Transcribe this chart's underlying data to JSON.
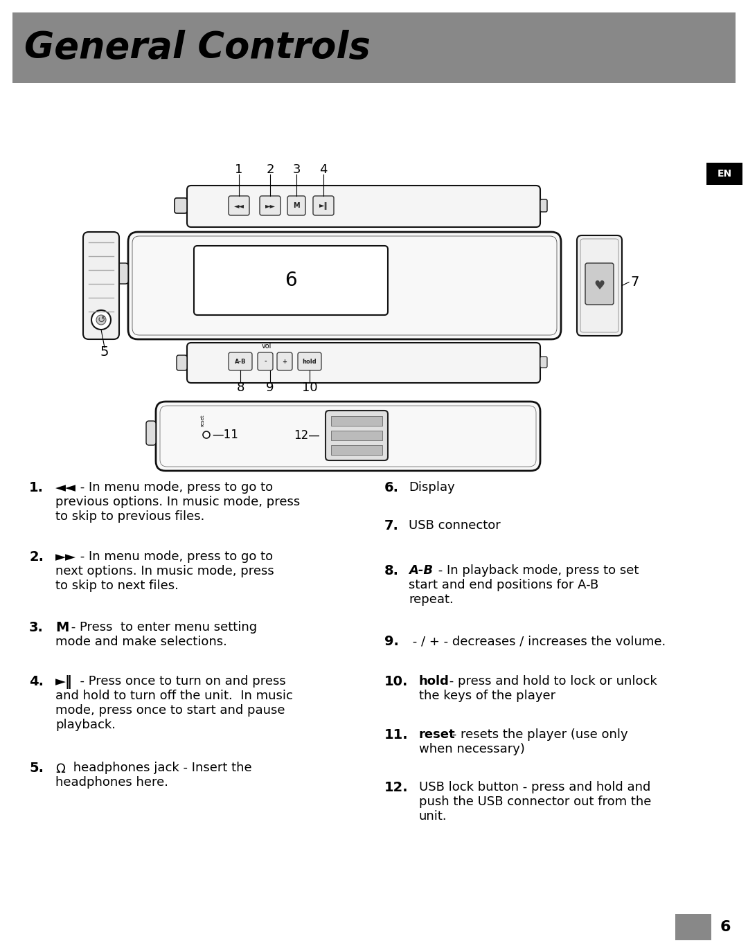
{
  "title": "General Controls",
  "title_bg_color": "#888888",
  "title_text_color": "#000000",
  "title_fontsize": 38,
  "body_bg_color": "#ffffff",
  "en_badge_bg": "#000000",
  "en_badge_text": "EN",
  "page_number": "6",
  "page_num_fontsize": 16
}
